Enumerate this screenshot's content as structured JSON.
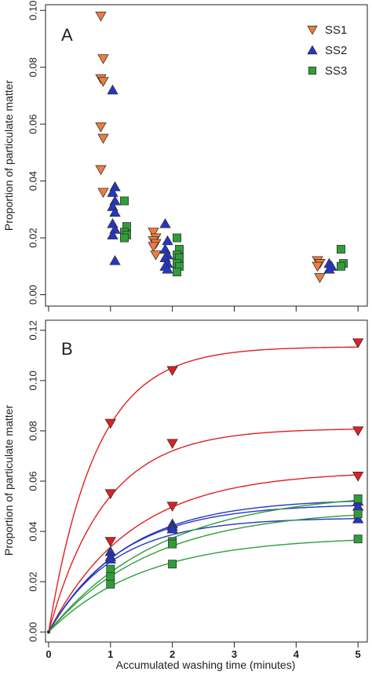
{
  "chart_data": [
    {
      "panel": "A",
      "type": "scatter",
      "ylabel": "Proportion of particulate matter",
      "ylim": [
        -0.004,
        0.102
      ],
      "yticks": [
        "0.00",
        "0.02",
        "0.04",
        "0.06",
        "0.08",
        "0.10"
      ],
      "legend_position": "top-right",
      "series": [
        {
          "name": "SS1",
          "marker": "triangle-down",
          "color": "#f07c3c",
          "x_group": 1,
          "values": [
            0.098,
            0.083,
            0.076,
            0.075,
            0.059,
            0.055,
            0.044,
            0.036
          ]
        },
        {
          "name": "SS2",
          "marker": "triangle-up",
          "color": "#2436c8",
          "x_group": 1,
          "values": [
            0.072,
            0.038,
            0.036,
            0.033,
            0.031,
            0.029,
            0.025,
            0.023,
            0.021,
            0.012
          ]
        },
        {
          "name": "SS3",
          "marker": "square",
          "color": "#2f9e38",
          "x_group": 1,
          "values": [
            0.033,
            0.024,
            0.022,
            0.021,
            0.02
          ]
        },
        {
          "name": "SS1",
          "marker": "triangle-down",
          "color": "#f07c3c",
          "x_group": 2,
          "values": [
            0.022,
            0.02,
            0.019,
            0.018,
            0.017,
            0.014
          ]
        },
        {
          "name": "SS2",
          "marker": "triangle-up",
          "color": "#2436c8",
          "x_group": 2,
          "values": [
            0.025,
            0.019,
            0.016,
            0.014,
            0.013,
            0.011,
            0.01,
            0.009
          ]
        },
        {
          "name": "SS3",
          "marker": "square",
          "color": "#2f9e38",
          "x_group": 2,
          "values": [
            0.02,
            0.016,
            0.014,
            0.013,
            0.011,
            0.01,
            0.008
          ]
        },
        {
          "name": "SS1",
          "marker": "triangle-down",
          "color": "#f07c3c",
          "x_group": 3,
          "values": [
            0.012,
            0.011,
            0.01,
            0.006
          ]
        },
        {
          "name": "SS2",
          "marker": "triangle-up",
          "color": "#2436c8",
          "x_group": 3,
          "values": [
            0.011,
            0.01,
            0.009
          ]
        },
        {
          "name": "SS3",
          "marker": "square",
          "color": "#2f9e38",
          "x_group": 3,
          "values": [
            0.016,
            0.011,
            0.01
          ]
        }
      ]
    },
    {
      "panel": "B",
      "type": "line",
      "xlabel": "Accumulated washing time (minutes)",
      "ylabel": "Proportion of particulate matter",
      "xticks": [
        "0",
        "1",
        "2",
        "3",
        "4",
        "5"
      ],
      "yticks": [
        "0.00",
        "0.02",
        "0.04",
        "0.06",
        "0.08",
        "0.10",
        "0.12"
      ],
      "xlim": [
        -0.05,
        5.15
      ],
      "ylim": [
        -0.004,
        0.124
      ],
      "series": [
        {
          "color": "#e02020",
          "marker": "triangle-down",
          "x": [
            1,
            2,
            5
          ],
          "y": [
            0.083,
            0.104,
            0.115
          ],
          "curve": {
            "a": 0.1135,
            "k": 1.3
          }
        },
        {
          "color": "#e02020",
          "marker": "triangle-down",
          "x": [
            1,
            2,
            5
          ],
          "y": [
            0.055,
            0.075,
            0.08
          ],
          "curve": {
            "a": 0.081,
            "k": 1.1
          }
        },
        {
          "color": "#e02020",
          "marker": "triangle-down",
          "x": [
            1,
            2,
            5
          ],
          "y": [
            0.036,
            0.05,
            0.062
          ],
          "curve": {
            "a": 0.064,
            "k": 0.75
          }
        },
        {
          "color": "#2436c8",
          "marker": "triangle-up",
          "x": [
            1,
            2,
            5
          ],
          "y": [
            0.032,
            0.043,
            0.052
          ],
          "curve": {
            "a": 0.053,
            "k": 0.8
          }
        },
        {
          "color": "#2436c8",
          "marker": "triangle-up",
          "x": [
            1,
            2,
            5
          ],
          "y": [
            0.03,
            0.042,
            0.045
          ],
          "curve": {
            "a": 0.0455,
            "k": 0.95
          }
        },
        {
          "color": "#2436c8",
          "marker": "triangle-up",
          "x": [
            1,
            2,
            5
          ],
          "y": [
            0.029,
            0.041,
            0.05
          ],
          "curve": {
            "a": 0.051,
            "k": 0.85
          }
        },
        {
          "color": "#2f9e38",
          "marker": "square",
          "x": [
            1,
            2,
            5
          ],
          "y": [
            0.025,
            0.036,
            0.053
          ],
          "curve": {
            "a": 0.056,
            "k": 0.55
          }
        },
        {
          "color": "#2f9e38",
          "marker": "square",
          "x": [
            1,
            2,
            5
          ],
          "y": [
            0.022,
            0.035,
            0.047
          ],
          "curve": {
            "a": 0.049,
            "k": 0.6
          }
        },
        {
          "color": "#2f9e38",
          "marker": "square",
          "x": [
            1,
            2,
            5
          ],
          "y": [
            0.019,
            0.027,
            0.037
          ],
          "curve": {
            "a": 0.038,
            "k": 0.65
          }
        }
      ]
    }
  ]
}
